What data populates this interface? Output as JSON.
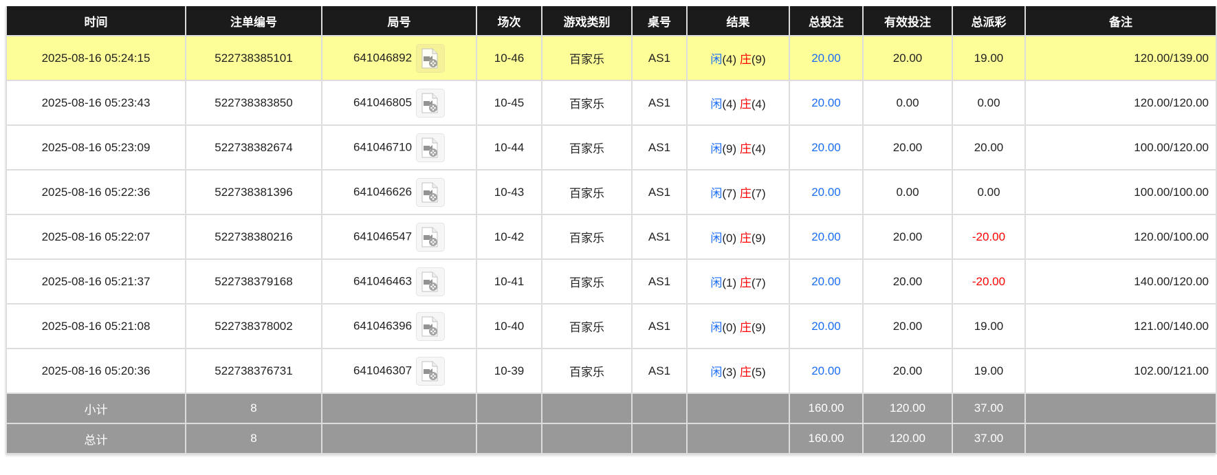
{
  "columns": [
    "时间",
    "注单编号",
    "局号",
    "场次",
    "游戏类别",
    "桌号",
    "结果",
    "总投注",
    "有效投注",
    "总派彩",
    "备注"
  ],
  "result_labels": {
    "player": "闲",
    "banker": "庄"
  },
  "colors": {
    "header_bg": "#1b1b1b",
    "highlight_row": "#fefe99",
    "summary_bg": "#999999",
    "bet_blue": "#1a6ef5",
    "negative_red": "#ff0000",
    "player_blue": "#1a6ef5",
    "banker_red": "#ff0000"
  },
  "rows": [
    {
      "time": "2025-08-16 05:24:15",
      "bet_id": "522738385101",
      "round": "641046892",
      "session": "10-46",
      "game": "百家乐",
      "table": "AS1",
      "player": "(4)",
      "banker": "(9)",
      "total_bet": "20.00",
      "valid_bet": "20.00",
      "payout": "19.00",
      "note": "120.00/139.00",
      "highlight": true
    },
    {
      "time": "2025-08-16 05:23:43",
      "bet_id": "522738383850",
      "round": "641046805",
      "session": "10-45",
      "game": "百家乐",
      "table": "AS1",
      "player": "(4)",
      "banker": "(4)",
      "total_bet": "20.00",
      "valid_bet": "0.00",
      "payout": "0.00",
      "note": "120.00/120.00"
    },
    {
      "time": "2025-08-16 05:23:09",
      "bet_id": "522738382674",
      "round": "641046710",
      "session": "10-44",
      "game": "百家乐",
      "table": "AS1",
      "player": "(9)",
      "banker": "(4)",
      "total_bet": "20.00",
      "valid_bet": "20.00",
      "payout": "20.00",
      "note": "100.00/120.00"
    },
    {
      "time": "2025-08-16 05:22:36",
      "bet_id": "522738381396",
      "round": "641046626",
      "session": "10-43",
      "game": "百家乐",
      "table": "AS1",
      "player": "(7)",
      "banker": "(7)",
      "total_bet": "20.00",
      "valid_bet": "0.00",
      "payout": "0.00",
      "note": "100.00/100.00"
    },
    {
      "time": "2025-08-16 05:22:07",
      "bet_id": "522738380216",
      "round": "641046547",
      "session": "10-42",
      "game": "百家乐",
      "table": "AS1",
      "player": "(0)",
      "banker": "(9)",
      "total_bet": "20.00",
      "valid_bet": "20.00",
      "payout": "-20.00",
      "note": "120.00/100.00"
    },
    {
      "time": "2025-08-16 05:21:37",
      "bet_id": "522738379168",
      "round": "641046463",
      "session": "10-41",
      "game": "百家乐",
      "table": "AS1",
      "player": "(1)",
      "banker": "(7)",
      "total_bet": "20.00",
      "valid_bet": "20.00",
      "payout": "-20.00",
      "note": "140.00/120.00"
    },
    {
      "time": "2025-08-16 05:21:08",
      "bet_id": "522738378002",
      "round": "641046396",
      "session": "10-40",
      "game": "百家乐",
      "table": "AS1",
      "player": "(0)",
      "banker": "(9)",
      "total_bet": "20.00",
      "valid_bet": "20.00",
      "payout": "19.00",
      "note": "121.00/140.00"
    },
    {
      "time": "2025-08-16 05:20:36",
      "bet_id": "522738376731",
      "round": "641046307",
      "session": "10-39",
      "game": "百家乐",
      "table": "AS1",
      "player": "(3)",
      "banker": "(5)",
      "total_bet": "20.00",
      "valid_bet": "20.00",
      "payout": "19.00",
      "note": "102.00/121.00"
    }
  ],
  "summary": [
    {
      "label": "小计",
      "count": "8",
      "total_bet": "160.00",
      "valid_bet": "120.00",
      "payout": "37.00"
    },
    {
      "label": "总计",
      "count": "8",
      "total_bet": "160.00",
      "valid_bet": "120.00",
      "payout": "37.00"
    }
  ]
}
